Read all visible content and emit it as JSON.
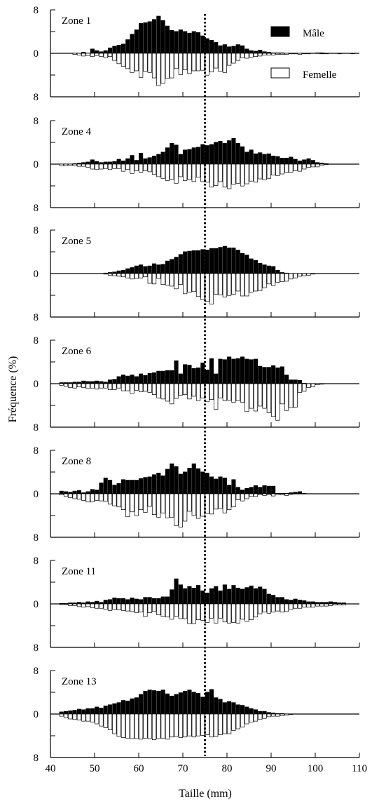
{
  "chart_data": {
    "type": "bar",
    "layout": "vertically stacked small multiples (7 panels), male bars above zero, female bars mirrored below zero",
    "shared_x": {
      "label": "Taille (mm)",
      "range": [
        40,
        110
      ],
      "ticks": [
        40,
        50,
        60,
        70,
        80,
        90,
        100,
        110
      ],
      "bin_width_mm": 1,
      "bin_starts": [
        42,
        43,
        44,
        45,
        46,
        47,
        48,
        49,
        50,
        51,
        52,
        53,
        54,
        55,
        56,
        57,
        58,
        59,
        60,
        61,
        62,
        63,
        64,
        65,
        66,
        67,
        68,
        69,
        70,
        71,
        72,
        73,
        74,
        75,
        76,
        77,
        78,
        79,
        80,
        81,
        82,
        83,
        84,
        85,
        86,
        87,
        88,
        89,
        90,
        91,
        92,
        93,
        94,
        95,
        96,
        97,
        98,
        99,
        100,
        101,
        102,
        103,
        104,
        105,
        106,
        107,
        108,
        109
      ]
    },
    "y_label": "Fréquence (%)",
    "y_tick_labels": [
      "8",
      "0",
      "8"
    ],
    "y_range": [
      -8,
      8
    ],
    "reference_line_x": 75,
    "legend": {
      "position": "top-right of first panel",
      "items": [
        {
          "name": "Mâle",
          "color": "#000000"
        },
        {
          "name": "Femelle",
          "color": "#ffffff"
        }
      ]
    },
    "panels": [
      {
        "title": "Zone 1",
        "male": [
          0,
          0,
          0,
          0,
          0,
          0.2,
          0,
          0.8,
          0.5,
          0.3,
          0.5,
          1.0,
          1.3,
          1.5,
          1.7,
          2.5,
          3.5,
          4.3,
          5.5,
          5.6,
          5.8,
          6.2,
          6.8,
          6.0,
          5.0,
          4.2,
          4.0,
          4.3,
          4.0,
          3.7,
          4.0,
          3.8,
          3.2,
          2.7,
          2.4,
          2.0,
          1.4,
          1.6,
          1.2,
          1.3,
          1.6,
          1.4,
          0.8,
          0.5,
          0.4,
          0.6,
          0.3,
          0.2,
          0.1,
          0.1,
          0.1,
          0,
          0,
          0,
          0,
          0,
          0,
          0,
          0.1,
          0.1,
          0,
          0,
          0,
          0,
          0,
          0,
          0,
          0
        ],
        "female": [
          0,
          0,
          0,
          0.2,
          0.3,
          0.5,
          0.4,
          0.6,
          0.4,
          0.6,
          0.8,
          0.6,
          1.3,
          1.9,
          2.4,
          2.8,
          3.5,
          3.2,
          4.4,
          3.3,
          3.5,
          4.5,
          5.9,
          5.5,
          4.6,
          4.5,
          2.8,
          3.9,
          3.0,
          3.7,
          3.2,
          3.2,
          3.1,
          4.0,
          3.4,
          2.7,
          3.3,
          3.5,
          2.2,
          1.8,
          1.3,
          0.8,
          0.9,
          0.7,
          0.6,
          0.5,
          0.3,
          0.3,
          0.3,
          0.2,
          0.2,
          0.2,
          0.1,
          0.1,
          0.2,
          0.1,
          0.1,
          0,
          0,
          0.1,
          0.1,
          0,
          0,
          0.1,
          0,
          0,
          0.1,
          0
        ]
      },
      {
        "title": "Zone 4",
        "male": [
          0,
          0,
          0,
          0.1,
          0.2,
          0.3,
          0.4,
          0.8,
          0.5,
          0.3,
          0.4,
          0.4,
          0.5,
          0.9,
          0.6,
          1.0,
          1.6,
          0.7,
          2.0,
          1.0,
          1.2,
          1.5,
          1.8,
          2.2,
          3.0,
          3.8,
          3.5,
          1.8,
          2.6,
          2.7,
          3.0,
          3.1,
          3.6,
          3.4,
          3.6,
          4.0,
          4.2,
          3.8,
          4.3,
          4.7,
          3.8,
          3.2,
          2.2,
          2.6,
          1.9,
          2.1,
          1.8,
          1.9,
          1.5,
          1.4,
          1.1,
          1.1,
          1.3,
          0.9,
          0.6,
          0.8,
          1.0,
          0.7,
          0.3,
          0.2,
          0.1,
          0,
          0,
          0,
          0,
          0,
          0,
          0
        ],
        "female": [
          0.3,
          0.3,
          0.2,
          0.3,
          0.4,
          0.4,
          0.6,
          0.9,
          1.0,
          0.9,
          0.8,
          1.0,
          0.8,
          0.8,
          1.3,
          1.0,
          1.7,
          1.2,
          1.5,
          1.2,
          1.4,
          1.9,
          2.3,
          2.6,
          3.0,
          2.8,
          3.5,
          2.3,
          3.0,
          2.8,
          3.2,
          2.4,
          3.2,
          3.3,
          4.2,
          3.9,
          3.2,
          4.2,
          4.5,
          3.7,
          3.5,
          4.0,
          3.6,
          3.1,
          3.3,
          2.7,
          2.9,
          2.6,
          2.0,
          2.1,
          1.8,
          1.5,
          1.5,
          1.2,
          1.3,
          0.9,
          0.6,
          0.5,
          0.5,
          0.2,
          0.1,
          0,
          0,
          0,
          0,
          0,
          0,
          0
        ]
      },
      {
        "title": "Zone 5",
        "male": [
          0,
          0,
          0,
          0,
          0,
          0,
          0,
          0,
          0,
          0,
          0.1,
          0.2,
          0.3,
          0.5,
          0.6,
          0.9,
          1.1,
          1.4,
          1.6,
          1.3,
          1.4,
          1.8,
          1.6,
          1.7,
          2.3,
          2.6,
          3.0,
          3.5,
          4.0,
          4.1,
          4.2,
          4.2,
          4.4,
          4.3,
          4.6,
          4.6,
          4.8,
          5.0,
          4.7,
          4.7,
          4.3,
          3.7,
          3.4,
          2.7,
          2.4,
          1.9,
          1.6,
          1.4,
          1.3,
          0.6,
          0.2,
          0.1,
          0,
          0,
          0,
          0,
          0,
          0,
          0,
          0,
          0,
          0,
          0,
          0,
          0,
          0,
          0,
          0
        ],
        "female": [
          0,
          0,
          0,
          0,
          0,
          0,
          0,
          0,
          0,
          0,
          0.1,
          0.3,
          0.4,
          0.5,
          0.6,
          0.8,
          1.0,
          0.9,
          0.8,
          0.6,
          1.8,
          1.9,
          0.9,
          2.0,
          2.1,
          2.3,
          2.8,
          2.0,
          3.7,
          3.4,
          3.3,
          4.2,
          4.8,
          5.1,
          5.6,
          3.8,
          3.9,
          4.3,
          4.0,
          3.8,
          3.2,
          4.1,
          4.1,
          3.4,
          3.2,
          3.1,
          2.6,
          1.9,
          2.2,
          1.6,
          1.5,
          1.4,
          1.0,
          0.8,
          0.5,
          0.4,
          0.3,
          0.1,
          0,
          0,
          0,
          0,
          0,
          0,
          0,
          0,
          0,
          0
        ]
      },
      {
        "title": "Zone 6",
        "male": [
          0.2,
          0.2,
          0.2,
          0.3,
          0.3,
          0.5,
          0.4,
          0.4,
          0.5,
          0.4,
          0.3,
          0.7,
          0.8,
          1.3,
          1.6,
          1.4,
          1.6,
          1.3,
          1.8,
          1.5,
          1.9,
          2.0,
          2.3,
          2.3,
          2.4,
          2.4,
          4.2,
          1.8,
          3.5,
          3.4,
          2.8,
          2.9,
          3.8,
          2.5,
          4.6,
          1.8,
          4.5,
          4.4,
          4.9,
          4.5,
          4.6,
          4.9,
          4.5,
          4.4,
          4.5,
          3.2,
          3.0,
          3.0,
          3.3,
          2.9,
          3.1,
          1.6,
          0.7,
          0.7,
          0.6,
          0.1,
          0,
          0,
          0,
          0,
          0,
          0,
          0,
          0,
          0,
          0,
          0,
          0
        ],
        "female": [
          0.3,
          0.5,
          0.7,
          0.8,
          0.6,
          0.7,
          0.9,
          0.8,
          1.0,
          0.8,
          0.8,
          1.1,
          1.1,
          0.8,
          1.3,
          1.3,
          1.8,
          1.2,
          1.5,
          1.4,
          1.6,
          2.0,
          2.6,
          2.8,
          3.2,
          3.7,
          2.7,
          2.1,
          2.0,
          2.8,
          2.3,
          3.1,
          2.6,
          3.3,
          2.9,
          4.7,
          2.6,
          3.1,
          3.0,
          3.4,
          3.1,
          3.4,
          5.1,
          4.5,
          5.0,
          4.1,
          4.5,
          5.3,
          6.0,
          6.7,
          3.7,
          4.9,
          4.4,
          4.3,
          1.6,
          1.4,
          0.7,
          0.6,
          0.2,
          0.1,
          0,
          0,
          0,
          0,
          0,
          0,
          0,
          0
        ]
      },
      {
        "title": "Zone 8",
        "male": [
          0.5,
          0.4,
          0.3,
          0.5,
          0.6,
          0.2,
          0.4,
          0.8,
          0.7,
          2.0,
          2.9,
          2.5,
          1.6,
          1.9,
          2.6,
          2.5,
          2.5,
          2.5,
          2.8,
          3.0,
          3.1,
          3.5,
          3.8,
          3.3,
          4.5,
          5.5,
          5.0,
          3.6,
          4.0,
          4.7,
          5.5,
          4.6,
          4.0,
          3.8,
          3.1,
          2.7,
          3.1,
          2.9,
          1.6,
          2.6,
          1.2,
          0.7,
          1.0,
          1.2,
          1.5,
          1.2,
          1.5,
          1.4,
          1.4,
          0.1,
          0.1,
          0.1,
          0.2,
          0.3,
          0.4,
          0.1,
          0,
          0,
          0,
          0,
          0,
          0,
          0,
          0,
          0,
          0,
          0,
          0
        ],
        "female": [
          0.2,
          0.5,
          0.7,
          0.9,
          1.0,
          1.2,
          1.5,
          1.5,
          1.2,
          1.3,
          1.4,
          1.9,
          2.2,
          2.4,
          2.9,
          4.2,
          3.3,
          4.0,
          2.9,
          3.4,
          2.3,
          3.8,
          4.3,
          3.5,
          4.4,
          4.3,
          5.8,
          6.1,
          5.0,
          3.2,
          4.0,
          4.5,
          4.1,
          3.6,
          3.7,
          2.8,
          2.7,
          3.5,
          2.9,
          2.4,
          1.1,
          1.3,
          0.9,
          0.5,
          0.5,
          0.2,
          0.3,
          0.2,
          0.4,
          0.1,
          0.2,
          0.3,
          0.1,
          0,
          0,
          0,
          0,
          0,
          0,
          0,
          0,
          0,
          0,
          0,
          0,
          0,
          0,
          0
        ]
      },
      {
        "title": "Zone 11",
        "male": [
          0.1,
          0.1,
          0.2,
          0.2,
          0.3,
          0.2,
          0.4,
          0.3,
          0.5,
          0.3,
          0.7,
          0.8,
          1.1,
          1.0,
          1.0,
          0.8,
          1.1,
          0.9,
          0.8,
          1.2,
          1.2,
          1.0,
          1.0,
          1.3,
          1.3,
          2.6,
          4.6,
          3.5,
          2.8,
          3.2,
          2.9,
          3.4,
          2.4,
          2.0,
          2.8,
          3.2,
          2.4,
          3.5,
          2.7,
          3.4,
          2.9,
          2.7,
          3.0,
          3.3,
          2.8,
          3.1,
          2.7,
          1.8,
          1.6,
          1.2,
          1.2,
          0.8,
          0.7,
          0.9,
          0.7,
          0.6,
          0.4,
          0.4,
          0.3,
          0.3,
          0.3,
          0.4,
          0.3,
          0.2,
          0.2,
          0,
          0,
          0
        ],
        "female": [
          0.1,
          0.1,
          0.3,
          0.3,
          0.5,
          0.6,
          0.5,
          0.7,
          0.8,
          0.8,
          1.0,
          1.2,
          1.0,
          1.1,
          1.2,
          1.3,
          1.4,
          1.6,
          1.5,
          2.3,
          1.6,
          1.4,
          2.0,
          2.3,
          2.4,
          2.8,
          2.3,
          2.7,
          2.7,
          3.6,
          3.6,
          2.9,
          3.0,
          3.4,
          2.6,
          3.5,
          2.6,
          3.3,
          3.5,
          3.4,
          3.5,
          2.8,
          3.2,
          2.9,
          2.4,
          1.8,
          1.5,
          1.7,
          1.5,
          1.3,
          1.5,
          1.4,
          1.0,
          0.8,
          0.8,
          0.6,
          0.6,
          0.6,
          0.4,
          0.4,
          0.4,
          0.3,
          0.2,
          0.2,
          0.2,
          0,
          0,
          0
        ]
      },
      {
        "title": "Zone 13",
        "male": [
          0.4,
          0.5,
          0.6,
          0.7,
          0.9,
          0.8,
          1.0,
          1.0,
          1.3,
          1.1,
          1.5,
          1.7,
          1.9,
          2.1,
          2.5,
          2.4,
          2.8,
          3.0,
          3.6,
          4.2,
          4.4,
          4.3,
          4.2,
          4.4,
          3.7,
          3.3,
          3.6,
          3.9,
          4.2,
          4.4,
          4.0,
          3.8,
          3.1,
          4.0,
          4.5,
          3.0,
          2.7,
          2.1,
          2.3,
          2.1,
          1.7,
          1.6,
          1.3,
          1.0,
          0.8,
          0.5,
          0.5,
          0.3,
          0.2,
          0.1,
          0.1,
          0,
          0,
          0,
          0,
          0,
          0,
          0,
          0,
          0,
          0,
          0,
          0,
          0,
          0,
          0,
          0,
          0
        ],
        "female": [
          0.4,
          0.7,
          0.9,
          1.0,
          1.1,
          1.3,
          1.3,
          1.5,
          1.8,
          2.2,
          2.5,
          2.9,
          3.6,
          4.1,
          4.3,
          4.4,
          4.5,
          4.5,
          4.6,
          4.4,
          4.5,
          4.7,
          4.5,
          4.4,
          4.6,
          4.2,
          4.1,
          4.3,
          4.2,
          4.0,
          4.2,
          4.0,
          3.9,
          3.8,
          4.2,
          4.1,
          3.8,
          3.6,
          3.6,
          3.0,
          2.7,
          2.4,
          1.8,
          1.5,
          1.3,
          1.0,
          0.8,
          0.5,
          0.4,
          0.4,
          0.3,
          0.2,
          0.1,
          0,
          0,
          0,
          0,
          0,
          0,
          0,
          0,
          0,
          0,
          0,
          0,
          0,
          0,
          0
        ]
      }
    ]
  }
}
